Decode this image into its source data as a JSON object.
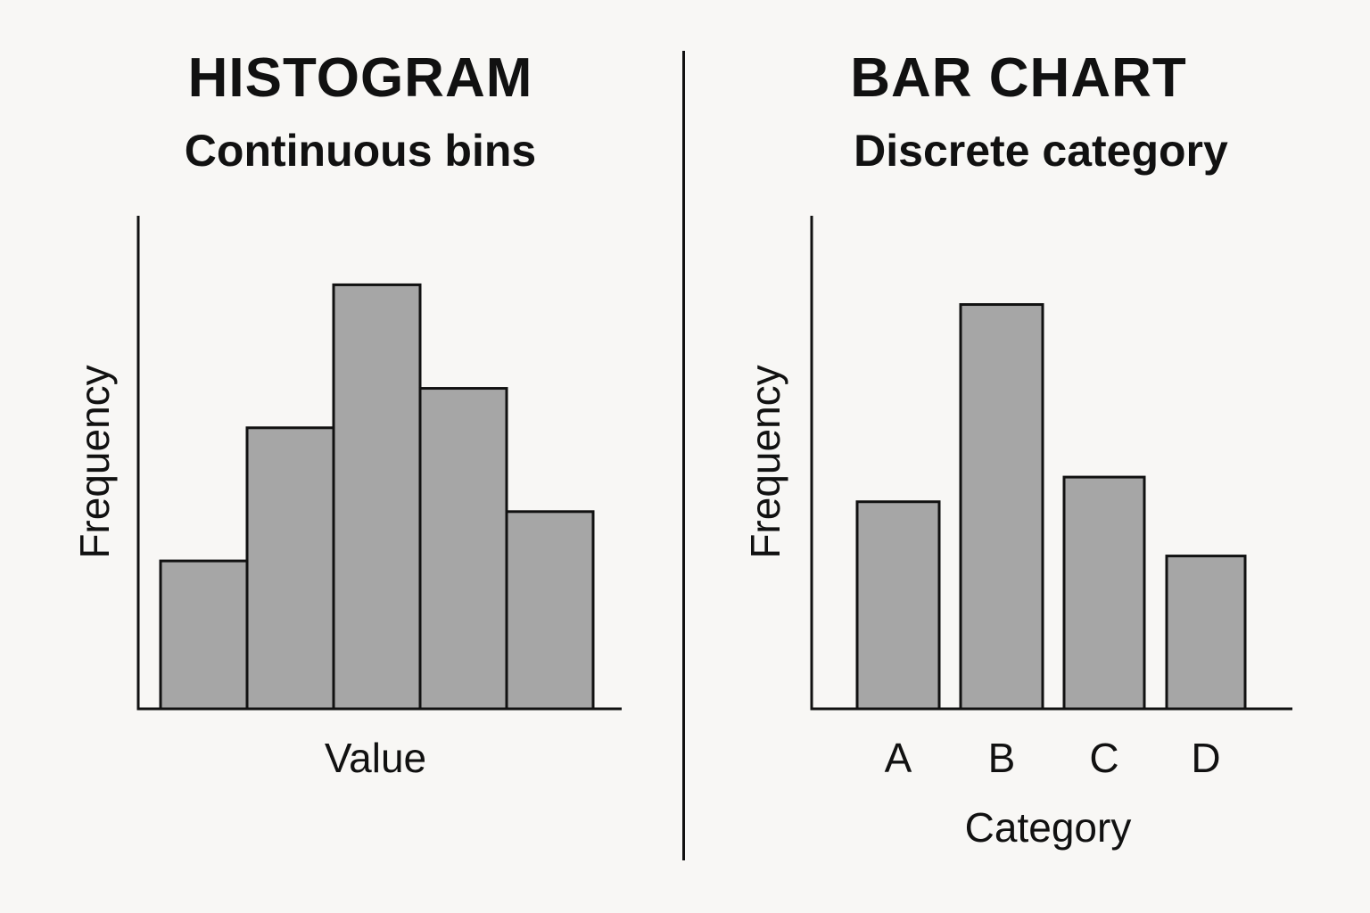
{
  "charts": {
    "histogram": {
      "title": "HISTOGRAM",
      "subtitle": "Continuous bins"
    },
    "bar": {
      "title": "BAR CHART",
      "subtitle": "Discrete category"
    }
  },
  "chart_data": [
    {
      "type": "bar",
      "title": "HISTOGRAM",
      "subtitle": "Continuous bins",
      "xlabel": "Value",
      "ylabel": "Frequency",
      "values": [
        3,
        5.7,
        8.6,
        6.5,
        4
      ],
      "ylim": [
        0,
        10
      ],
      "gap_between_bars": false,
      "bar_color": "#a6a6a6",
      "edge_color": "#111111",
      "grid": false
    },
    {
      "type": "bar",
      "title": "BAR CHART",
      "subtitle": "Discrete category",
      "xlabel": "Category",
      "ylabel": "Frequency",
      "categories": [
        "A",
        "B",
        "C",
        "D"
      ],
      "values": [
        4.2,
        8.2,
        4.7,
        3.1
      ],
      "ylim": [
        0,
        10
      ],
      "gap_between_bars": true,
      "bar_color": "#a6a6a6",
      "edge_color": "#111111",
      "grid": false
    }
  ]
}
